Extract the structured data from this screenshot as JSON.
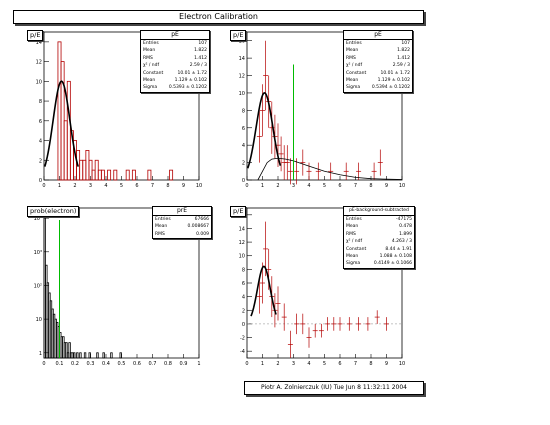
{
  "title": "Electron Calibration",
  "footer": "Piotr A. Zolnierczuk (IU) Tue Jun  8 11:32:11 2004",
  "colors": {
    "hist": "#b30000",
    "fit": "#000000",
    "marker": "#00bb00",
    "frame": "#000000"
  },
  "pads": [
    {
      "label": "p/E",
      "stats": {
        "header": "pE",
        "rows": [
          [
            "Entries",
            "107"
          ],
          [
            "Mean",
            "1.822"
          ],
          [
            "RMS",
            "1.412"
          ],
          [
            "χ² / ndf",
            "2.59 / 3"
          ],
          [
            "Constant",
            "10.01 ± 1.72"
          ],
          [
            "Mean",
            "1.129 ± 0.102"
          ],
          [
            "Sigma",
            "0.5393 ± 0.1202"
          ]
        ]
      },
      "x_ticks": [
        "0",
        "1",
        "2",
        "3",
        "4",
        "5",
        "6",
        "7",
        "8",
        "9",
        "10"
      ],
      "y_ticks": [
        "0",
        "2",
        "4",
        "6",
        "8",
        "10",
        "12",
        "14"
      ]
    },
    {
      "label": "p/E",
      "stats": {
        "header": "pE",
        "rows": [
          [
            "Entries",
            "107"
          ],
          [
            "Mean",
            "1.822"
          ],
          [
            "RMS",
            "1.412"
          ],
          [
            "χ² / ndf",
            "2.59 / 3"
          ],
          [
            "Constant",
            "10.01 ± 1.72"
          ],
          [
            "Mean",
            "1.129 ± 0.102"
          ],
          [
            "Sigma",
            "0.5394 ± 0.1202"
          ]
        ]
      },
      "x_ticks": [
        "0",
        "1",
        "2",
        "3",
        "4",
        "5",
        "6",
        "7",
        "8",
        "9",
        "10"
      ],
      "y_ticks": [
        "0",
        "2",
        "4",
        "6",
        "8",
        "10",
        "12",
        "14",
        "16"
      ]
    },
    {
      "label": "prob(electron)",
      "stats": {
        "header": "prE",
        "rows": [
          [
            "Entries",
            "67666"
          ],
          [
            "Mean",
            "0.008667"
          ],
          [
            "RMS",
            "0.009"
          ]
        ]
      },
      "x_ticks": [
        "0",
        "0.1",
        "0.2",
        "0.3",
        "0.4",
        "0.5",
        "0.6",
        "0.7",
        "0.8",
        "0.9",
        "1"
      ],
      "y_ticks": [
        "1",
        "10",
        "10²",
        "10³",
        "10⁴"
      ]
    },
    {
      "label": "p/E",
      "stats": {
        "header": "pE-background-subtracted",
        "rows": [
          [
            "Entries",
            "-47175"
          ],
          [
            "Mean",
            "0.478"
          ],
          [
            "RMS",
            "1.899"
          ],
          [
            "χ² / ndf",
            "4.263 / 3"
          ],
          [
            "Constant",
            "8.44 ± 1.91"
          ],
          [
            "Mean",
            "1.088 ± 0.108"
          ],
          [
            "Sigma",
            "0.4149 ± 0.1066"
          ]
        ]
      },
      "x_ticks": [
        "0",
        "1",
        "2",
        "3",
        "4",
        "5",
        "6",
        "7",
        "8",
        "9",
        "10"
      ],
      "y_ticks": [
        "-4",
        "-2",
        "0",
        "2",
        "4",
        "6",
        "8",
        "10",
        "12",
        "14",
        "16"
      ]
    }
  ],
  "chart_data": [
    {
      "type": "bar",
      "title": "p/E",
      "xlim": [
        0,
        10
      ],
      "ylim": [
        0,
        15
      ],
      "bin_edges_start": 0.5,
      "bin_width": 0.2,
      "values": [
        0,
        0,
        14,
        12,
        6,
        10,
        5,
        4,
        3,
        2,
        2,
        3,
        2,
        1,
        2,
        1,
        1,
        0,
        1,
        0,
        1,
        0,
        0,
        0,
        1,
        0,
        1,
        0,
        0,
        0,
        0,
        1,
        0,
        0,
        0,
        0,
        0,
        0,
        1,
        0
      ],
      "gauss_fit": {
        "constant": 10.01,
        "mean": 1.129,
        "sigma": 0.5393
      },
      "marker_x": 0
    },
    {
      "type": "scatter",
      "title": "p/E",
      "xlim": [
        0,
        10
      ],
      "ylim": [
        0,
        17
      ],
      "points": [
        [
          0.8,
          5,
          3
        ],
        [
          1.0,
          8,
          3
        ],
        [
          1.2,
          12,
          4
        ],
        [
          1.4,
          9,
          3
        ],
        [
          1.6,
          6,
          3
        ],
        [
          1.8,
          5,
          2.5
        ],
        [
          2.0,
          4,
          2.5
        ],
        [
          2.2,
          3,
          2
        ],
        [
          2.4,
          2,
          2
        ],
        [
          2.6,
          2,
          2
        ],
        [
          2.8,
          1,
          1.5
        ],
        [
          3.2,
          1,
          1.5
        ],
        [
          3.6,
          2,
          1.5
        ],
        [
          4.0,
          1,
          1
        ],
        [
          4.6,
          1,
          1
        ],
        [
          5.4,
          1,
          1
        ],
        [
          6.4,
          1,
          1
        ],
        [
          7.2,
          1,
          1
        ],
        [
          8.2,
          1,
          1
        ],
        [
          8.6,
          2,
          1.5
        ]
      ],
      "gauss_fit": {
        "constant": 10.01,
        "mean": 1.129,
        "sigma": 0.5394
      },
      "background": [
        [
          0.7,
          0
        ],
        [
          1.0,
          1
        ],
        [
          1.3,
          2
        ],
        [
          1.6,
          2.4
        ],
        [
          2.0,
          2.5
        ],
        [
          2.5,
          2.4
        ],
        [
          3.0,
          2.2
        ],
        [
          4.0,
          1.6
        ],
        [
          5.0,
          1.0
        ],
        [
          6.0,
          0.6
        ],
        [
          7.0,
          0.3
        ],
        [
          8.0,
          0.15
        ],
        [
          9.0,
          0.1
        ],
        [
          10,
          0.05
        ]
      ],
      "marker_x": 3.0
    },
    {
      "type": "bar",
      "title": "prob(electron)",
      "xlim": [
        0,
        1
      ],
      "ylim": [
        0.7,
        20000
      ],
      "log_y": true,
      "bin_width": 0.01,
      "values": [
        12000,
        400,
        120,
        60,
        35,
        20,
        14,
        10,
        8,
        6,
        4,
        3,
        3,
        2,
        2,
        1,
        2,
        1,
        1,
        1,
        0,
        1,
        0,
        1,
        0,
        0,
        1,
        0,
        0,
        1,
        0,
        0,
        0,
        0,
        1,
        0,
        0,
        0,
        1,
        0,
        0,
        0,
        0,
        1,
        0,
        0,
        0,
        0,
        0,
        1
      ],
      "marker_x": 0.1
    },
    {
      "type": "scatter",
      "title": "p/E",
      "xlim": [
        0,
        10
      ],
      "ylim": [
        -5,
        17
      ],
      "points": [
        [
          0.8,
          4,
          2.5
        ],
        [
          1.0,
          6,
          3
        ],
        [
          1.2,
          11,
          4
        ],
        [
          1.4,
          8,
          3
        ],
        [
          1.6,
          4,
          3
        ],
        [
          1.8,
          2,
          2.5
        ],
        [
          2.0,
          3,
          2.5
        ],
        [
          2.4,
          1,
          2
        ],
        [
          2.8,
          -3,
          2
        ],
        [
          3.2,
          0,
          1.5
        ],
        [
          3.6,
          0,
          1.5
        ],
        [
          4.0,
          -2,
          1.5
        ],
        [
          4.4,
          -1,
          1
        ],
        [
          4.8,
          -1,
          1
        ],
        [
          5.2,
          0,
          1
        ],
        [
          5.6,
          0,
          1
        ],
        [
          6.0,
          0,
          1
        ],
        [
          6.6,
          0,
          1
        ],
        [
          7.2,
          0,
          1
        ],
        [
          7.8,
          0,
          1
        ],
        [
          8.4,
          1,
          1
        ],
        [
          9.0,
          0,
          1
        ]
      ],
      "gauss_fit": {
        "constant": 8.44,
        "mean": 1.088,
        "sigma": 0.4149
      },
      "marker_x": 0
    }
  ]
}
